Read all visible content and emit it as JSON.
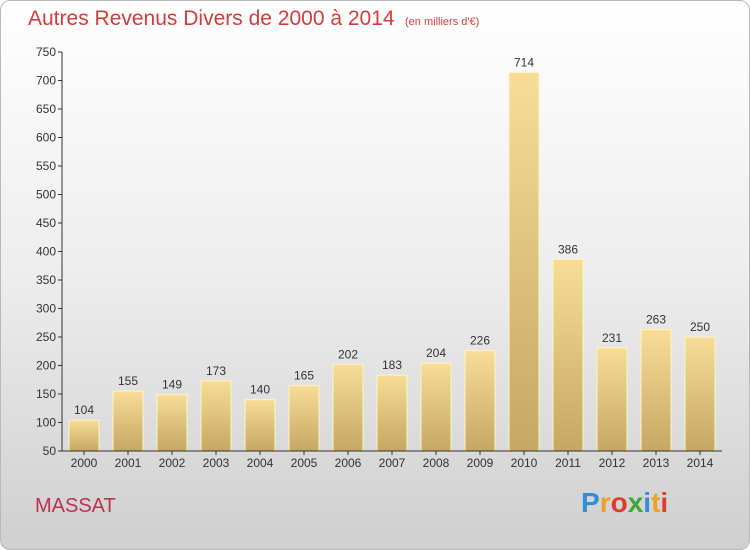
{
  "header": {
    "title": "Autres Revenus Divers de 2000 à 2014",
    "subtitle": "(en milliers d'€)"
  },
  "footer": {
    "place": "MASSAT"
  },
  "logo": {
    "letters": [
      "P",
      "r",
      "o",
      "x",
      "i",
      "t",
      "i"
    ],
    "colors": [
      "#2f8fd8",
      "#f0a020",
      "#e03c2c",
      "#3aa83a",
      "#2f8fd8",
      "#f0a020",
      "#e03c2c"
    ]
  },
  "colors": {
    "bar_top": "#f7dd96",
    "bar_bottom": "#c5a862",
    "bar_edge": "#fff3c4",
    "axis": "#333333",
    "grid": "#dcdcdc"
  },
  "chart_data": {
    "type": "bar",
    "categories": [
      "2000",
      "2001",
      "2002",
      "2003",
      "2004",
      "2005",
      "2006",
      "2007",
      "2008",
      "2009",
      "2010",
      "2011",
      "2012",
      "2013",
      "2014"
    ],
    "values": [
      104,
      155,
      149,
      173,
      140,
      165,
      202,
      183,
      204,
      226,
      714,
      386,
      231,
      263,
      250
    ],
    "value_labels": [
      "104",
      "155",
      "149",
      "173",
      "140",
      "165",
      "202",
      "183",
      "204",
      "226",
      "714",
      "386",
      "231",
      "263",
      "250"
    ],
    "yticks": [
      "50",
      "100",
      "150",
      "200",
      "250",
      "300",
      "350",
      "400",
      "450",
      "500",
      "550",
      "600",
      "650",
      "700",
      "750"
    ],
    "ylim": [
      50,
      750
    ],
    "grid": false,
    "legend": "none"
  }
}
